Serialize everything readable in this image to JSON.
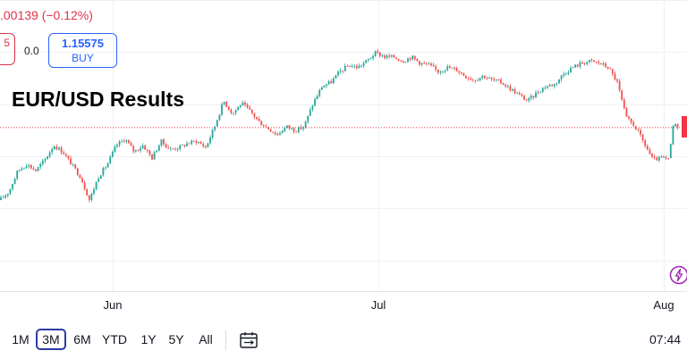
{
  "header": {
    "change_text": ".00139 (−0.12%)",
    "sell_fragment": "5",
    "spread": "0.0",
    "buy_price": "1.15575",
    "buy_label": "BUY"
  },
  "title": "EUR/USD Results",
  "toolbar": {
    "ranges": [
      "1M",
      "3M",
      "6M",
      "YTD",
      "1Y",
      "5Y",
      "All"
    ],
    "active_range": "3M",
    "clock": "07:44"
  },
  "icons": {
    "calendar": "calendar-range-icon",
    "flash": "lightning-icon"
  },
  "colors": {
    "up": "#26a69a",
    "down": "#ef5350",
    "accent": "#2962ff",
    "price_line": "#f23645"
  },
  "chart_data": {
    "type": "candlestick",
    "x_tick_labels": [
      "Jun",
      "Jul",
      "Aug"
    ],
    "current_price_line": 1.1557,
    "series": {
      "close_path": [
        [
          0,
          1.1385
        ],
        [
          10,
          1.1405
        ],
        [
          20,
          1.1455
        ],
        [
          30,
          1.147
        ],
        [
          40,
          1.1455
        ],
        [
          50,
          1.148
        ],
        [
          60,
          1.1515
        ],
        [
          70,
          1.15
        ],
        [
          80,
          1.147
        ],
        [
          90,
          1.144
        ],
        [
          100,
          1.1385
        ],
        [
          110,
          1.144
        ],
        [
          120,
          1.147
        ],
        [
          130,
          1.1515
        ],
        [
          140,
          1.153
        ],
        [
          150,
          1.15
        ],
        [
          160,
          1.1515
        ],
        [
          170,
          1.1485
        ],
        [
          180,
          1.1525
        ],
        [
          190,
          1.1505
        ],
        [
          200,
          1.151
        ],
        [
          210,
          1.152
        ],
        [
          220,
          1.1525
        ],
        [
          230,
          1.151
        ],
        [
          240,
          1.156
        ],
        [
          250,
          1.162
        ],
        [
          260,
          1.159
        ],
        [
          270,
          1.1615
        ],
        [
          280,
          1.1595
        ],
        [
          290,
          1.157
        ],
        [
          300,
          1.1555
        ],
        [
          310,
          1.154
        ],
        [
          320,
          1.156
        ],
        [
          330,
          1.155
        ],
        [
          340,
          1.156
        ],
        [
          350,
          1.1615
        ],
        [
          360,
          1.1655
        ],
        [
          370,
          1.1665
        ],
        [
          380,
          1.169
        ],
        [
          390,
          1.1705
        ],
        [
          400,
          1.17
        ],
        [
          410,
          1.1715
        ],
        [
          420,
          1.1735
        ],
        [
          430,
          1.1725
        ],
        [
          440,
          1.1725
        ],
        [
          450,
          1.1715
        ],
        [
          460,
          1.1725
        ],
        [
          470,
          1.171
        ],
        [
          480,
          1.1705
        ],
        [
          490,
          1.169
        ],
        [
          500,
          1.17
        ],
        [
          510,
          1.1695
        ],
        [
          520,
          1.168
        ],
        [
          530,
          1.167
        ],
        [
          540,
          1.168
        ],
        [
          550,
          1.167
        ],
        [
          560,
          1.1665
        ],
        [
          570,
          1.165
        ],
        [
          580,
          1.1635
        ],
        [
          590,
          1.162
        ],
        [
          600,
          1.164
        ],
        [
          610,
          1.1655
        ],
        [
          620,
          1.166
        ],
        [
          630,
          1.1685
        ],
        [
          640,
          1.17
        ],
        [
          650,
          1.171
        ],
        [
          660,
          1.1715
        ],
        [
          670,
          1.171
        ],
        [
          680,
          1.17
        ],
        [
          690,
          1.1665
        ],
        [
          700,
          1.158
        ],
        [
          710,
          1.156
        ],
        [
          720,
          1.152
        ],
        [
          730,
          1.148
        ],
        [
          740,
          1.1485
        ],
        [
          748,
          1.148
        ],
        [
          752,
          1.156
        ],
        [
          762,
          1.1565
        ]
      ]
    }
  }
}
